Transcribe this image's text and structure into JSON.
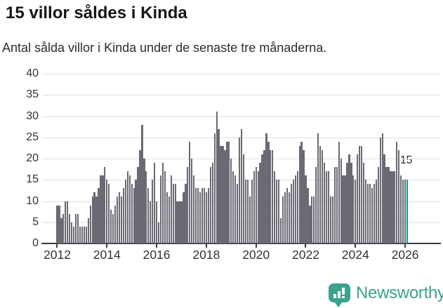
{
  "title": "15 villor såldes i Kinda",
  "subtitle": "Antal sålda villor i Kinda under de senaste tre månaderna.",
  "footer": {
    "brand": "Newsworthy",
    "logo_icon": "newsworthy-badge-bar-chart-icon"
  },
  "colors": {
    "bar": "#6a6a74",
    "highlight": "#13998f",
    "axis": "#3b3b3b",
    "grid": "#e1e1e1",
    "title_text": "#161616",
    "body_text": "#333333",
    "brand": "#3ba28f",
    "background": "#ffffff"
  },
  "chart_data": {
    "type": "bar",
    "title": "15 villor såldes i Kinda",
    "subtitle": "Antal sålda villor i Kinda under de senaste tre månaderna.",
    "x_unit": "month",
    "x_start": "2012-01",
    "x_end": "2026-02",
    "x_tick_years": [
      2012,
      2014,
      2016,
      2018,
      2020,
      2022,
      2024,
      2026
    ],
    "x_tick_labels": [
      "2012",
      "2014",
      "2016",
      "2018",
      "2020",
      "2022",
      "2024",
      "2026"
    ],
    "ylim": [
      0,
      40
    ],
    "y_ticks": [
      0,
      5,
      10,
      15,
      20,
      25,
      30,
      35,
      40
    ],
    "grid": "horizontal",
    "legend": "none",
    "highlight": {
      "index": 169,
      "value": 15,
      "label": "15",
      "note": "last bar drawn in teal"
    },
    "values": [
      9,
      9,
      6,
      7,
      10,
      10,
      7,
      5,
      4,
      7,
      7,
      4,
      4,
      4,
      4,
      6,
      9,
      11,
      12,
      11,
      13,
      16,
      16,
      18,
      15,
      14,
      8,
      7,
      9,
      11,
      12,
      11,
      13,
      15,
      17,
      16,
      14,
      13,
      15,
      18,
      22,
      28,
      20,
      17,
      13,
      10,
      15,
      19,
      10,
      5,
      16,
      19,
      17,
      12,
      11,
      16,
      14,
      14,
      10,
      10,
      10,
      12,
      14,
      18,
      24,
      20,
      16,
      13,
      13,
      12,
      13,
      13,
      12,
      13,
      18,
      19,
      26,
      31,
      27,
      23,
      23,
      22,
      24,
      24,
      20,
      17,
      16,
      14,
      25,
      27,
      21,
      15,
      15,
      11,
      15,
      17,
      18,
      17,
      19,
      21,
      22,
      26,
      24,
      22,
      22,
      17,
      15,
      15,
      6,
      11,
      12,
      13,
      12,
      14,
      15,
      16,
      17,
      23,
      24,
      22,
      16,
      13,
      9,
      11,
      11,
      18,
      26,
      23,
      22,
      19,
      17,
      17,
      11,
      11,
      18,
      18,
      24,
      20,
      16,
      16,
      19,
      21,
      19,
      16,
      15,
      21,
      23,
      23,
      19,
      15,
      14,
      14,
      13,
      14,
      15,
      18,
      25,
      26,
      21,
      18,
      18,
      17,
      17,
      17,
      24,
      22,
      16,
      15,
      15,
      15
    ]
  }
}
